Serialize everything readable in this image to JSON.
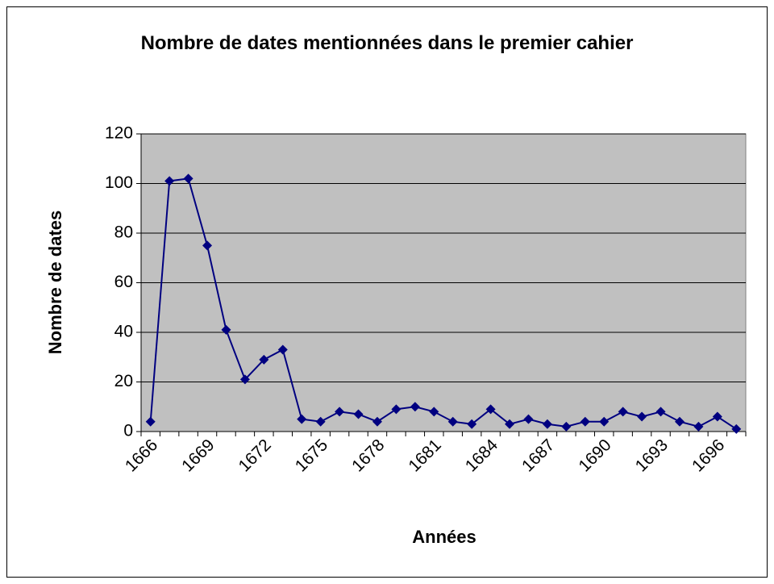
{
  "chart_data": {
    "type": "line",
    "title": "Nombre de dates mentionnées dans le premier cahier",
    "x_label": "Années",
    "y_label": "Nombre de dates",
    "categories": [
      "1666",
      null,
      null,
      "1669",
      null,
      null,
      "1672",
      null,
      null,
      "1675",
      null,
      null,
      "1678",
      null,
      null,
      "1681",
      null,
      null,
      "1684",
      null,
      null,
      "1687",
      null,
      null,
      "1690",
      null,
      null,
      "1693",
      null,
      null,
      "1696",
      null
    ],
    "series": [
      {
        "name": "Nombre de dates",
        "color": "#000080",
        "values": [
          4,
          101,
          102,
          75,
          41,
          21,
          29,
          33,
          5,
          4,
          8,
          7,
          4,
          9,
          10,
          8,
          4,
          3,
          9,
          3,
          5,
          3,
          2,
          4,
          4,
          8,
          6,
          8,
          4,
          2,
          6,
          1
        ]
      }
    ],
    "ylim": [
      0,
      120
    ],
    "yticks": [
      0,
      20,
      40,
      60,
      80,
      100,
      120
    ],
    "grid": true,
    "plot_background": "#c0c0c0"
  }
}
